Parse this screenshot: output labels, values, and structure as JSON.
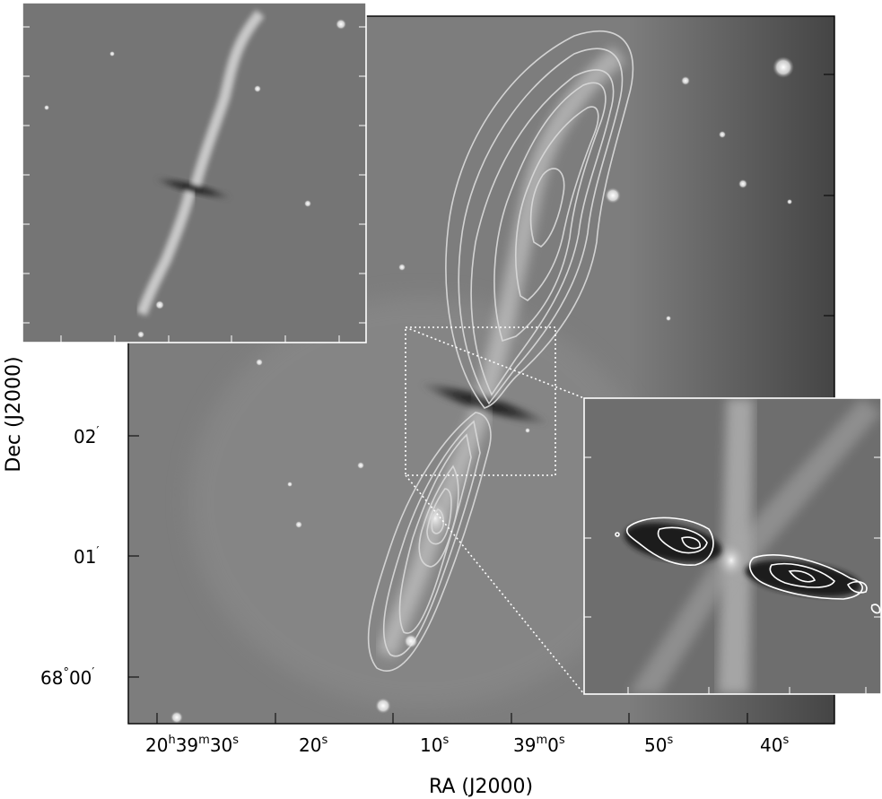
{
  "axes": {
    "x_title": "RA (J2000)",
    "y_title": "Dec (J2000)",
    "x_ticks": [
      {
        "pre": "20",
        "h": "h",
        "mid1": "39",
        "m": "m",
        "mid2": "30",
        "s": "s"
      },
      {
        "pre": "20",
        "s": "s"
      },
      {
        "pre": "10",
        "s": "s"
      },
      {
        "pre": "39",
        "m": "m",
        "mid1": "0",
        "s": "s"
      },
      {
        "pre": "50",
        "s": "s"
      },
      {
        "pre": "40",
        "s": "s"
      }
    ],
    "y_ticks": [
      {
        "deg": "68",
        "degsym": "°",
        "min": "00",
        "prime": "′"
      },
      {
        "min": "01",
        "prime": "′"
      },
      {
        "min": "02",
        "prime": "′"
      }
    ]
  },
  "colors": {
    "frame": "#000000",
    "background_sky": "#7a7a7a",
    "contour_main": "#d8d8d8",
    "contour_inset": "#ffffff",
    "zoom_lines": "#ffffff"
  }
}
